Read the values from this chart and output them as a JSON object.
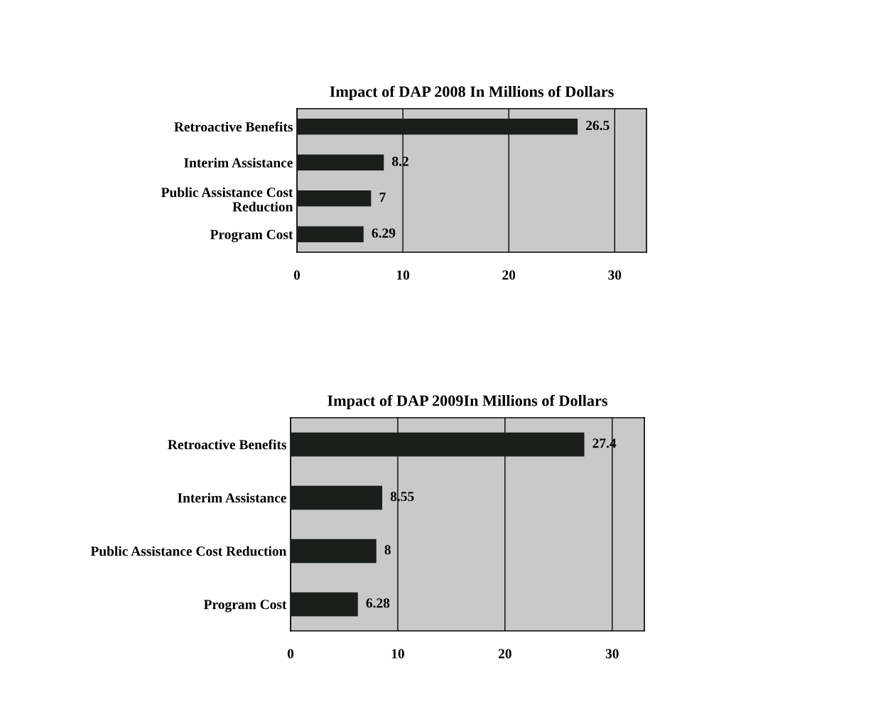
{
  "chart_data": [
    {
      "type": "bar",
      "orientation": "horizontal",
      "title": "Impact of DAP 2008 In Millions of Dollars",
      "categories": [
        "Retroactive Benefits",
        "Interim Assistance",
        "Public Assistance Cost\nReduction",
        "Program Cost"
      ],
      "values": [
        26.5,
        8.2,
        7,
        6.29
      ],
      "color": "#1a1f1c",
      "xlim": [
        0,
        33
      ],
      "xticks": [
        0,
        10,
        20,
        30
      ],
      "grid": "x",
      "data_labels": true
    },
    {
      "type": "bar",
      "orientation": "horizontal",
      "title": "Impact of DAP 2009In Millions of Dollars",
      "categories": [
        "Retroactive Benefits",
        "Interim Assistance",
        "Public Assistance Cost Reduction",
        "Program Cost"
      ],
      "values": [
        27.4,
        8.55,
        8,
        6.28
      ],
      "color": "#1a1f1c",
      "xlim": [
        0,
        33
      ],
      "xticks": [
        0,
        10,
        20,
        30
      ],
      "grid": "x",
      "data_labels": true
    }
  ]
}
